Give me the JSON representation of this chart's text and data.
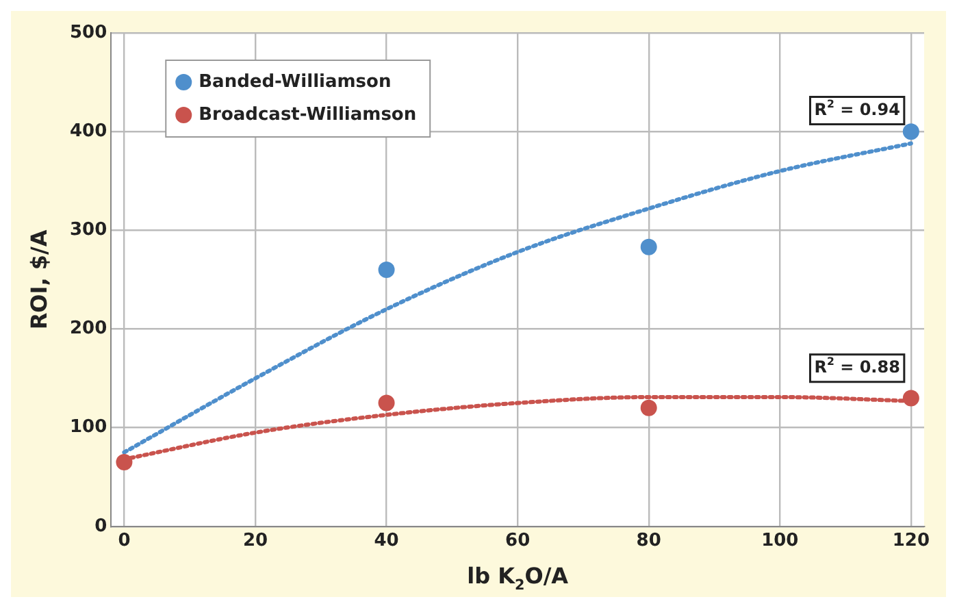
{
  "chart_data": {
    "type": "scatter",
    "xlabel": "lb K$_{2}$O/A",
    "ylabel": "ROI, $/A",
    "series": [
      {
        "name": "Banded-Williamson",
        "color": "#4f8fcc",
        "x": [
          40,
          80,
          120
        ],
        "values": [
          260,
          283,
          400
        ],
        "marker": "circle"
      },
      {
        "name": "Broadcast-Williamson",
        "color": "#c9534d",
        "x": [
          0,
          40,
          80,
          120
        ],
        "values": [
          65,
          125,
          120,
          130
        ],
        "marker": "circle"
      },
      {
        "type": "line",
        "color": "#4f8fcc",
        "x": [
          0,
          20,
          40,
          60,
          80,
          100,
          120
        ],
        "values": [
          75,
          150,
          220,
          278,
          322,
          360,
          388
        ],
        "line_style": "dotted",
        "marker": "none"
      },
      {
        "type": "line",
        "color": "#c9534d",
        "x": [
          0,
          20,
          40,
          60,
          80,
          100,
          120
        ],
        "values": [
          68,
          95,
          113,
          125,
          131,
          131,
          127
        ],
        "line_style": "dotted",
        "marker": "none"
      }
    ],
    "xlim": [
      -2,
      122
    ],
    "xticks": [
      0,
      20,
      40,
      60,
      80,
      100,
      120
    ],
    "ylim": [
      0,
      500
    ],
    "yticks": [
      0,
      100,
      200,
      300,
      400,
      500
    ],
    "grid": true,
    "legend": "top left",
    "annotations": [
      {
        "text": "R$^{2}$ = 0.94",
        "x": 120,
        "y": 388
      },
      {
        "text": "R$^{2}$ = 0.88",
        "x": 120,
        "y": 127
      }
    ]
  }
}
